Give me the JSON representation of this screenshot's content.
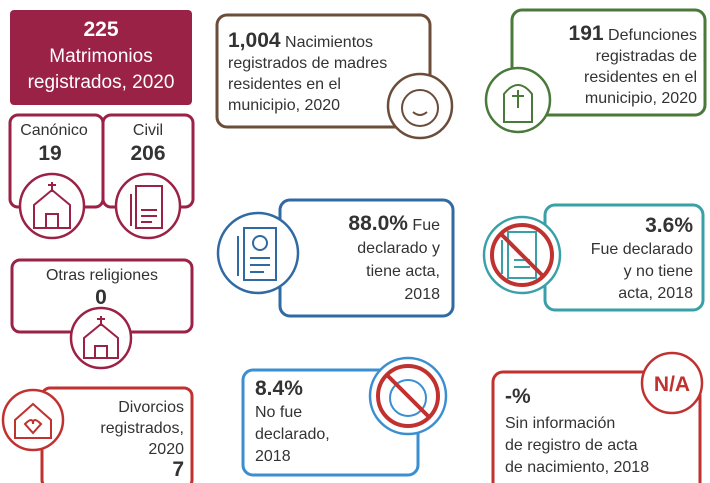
{
  "marriages": {
    "total": "225",
    "lines": [
      "Matrimonios",
      "registrados, 2020"
    ],
    "canonico": {
      "label": "Canónico",
      "value": "19"
    },
    "civil": {
      "label": "Civil",
      "value": "206"
    },
    "otras": {
      "label": "Otras religiones",
      "value": "0"
    }
  },
  "divorces": {
    "lines": [
      "Divorcios",
      "registrados,",
      "2020"
    ],
    "value": "7"
  },
  "births": {
    "value": "1,004",
    "lines": [
      "Nacimientos",
      "registrados de madres",
      "residentes en el",
      "municipio, 2020"
    ]
  },
  "deaths": {
    "value": "191",
    "lines": [
      "Defunciones",
      "registradas de",
      "residentes en el",
      "municipio, 2020"
    ]
  },
  "declared_with_act": {
    "value": "88.0%",
    "lines": [
      "Fue",
      "declarado y",
      "tiene acta,",
      "2018"
    ]
  },
  "declared_no_act": {
    "value": "3.6%",
    "lines": [
      "Fue declarado",
      "y no tiene",
      "acta, 2018"
    ]
  },
  "not_declared": {
    "value": "8.4%",
    "lines": [
      "No fue",
      "declarado,",
      "2018"
    ]
  },
  "no_info": {
    "value": "-%",
    "lines": [
      "Sin información",
      "de registro de acta",
      "de nacimiento, 2018"
    ],
    "badge": "N/A"
  }
}
